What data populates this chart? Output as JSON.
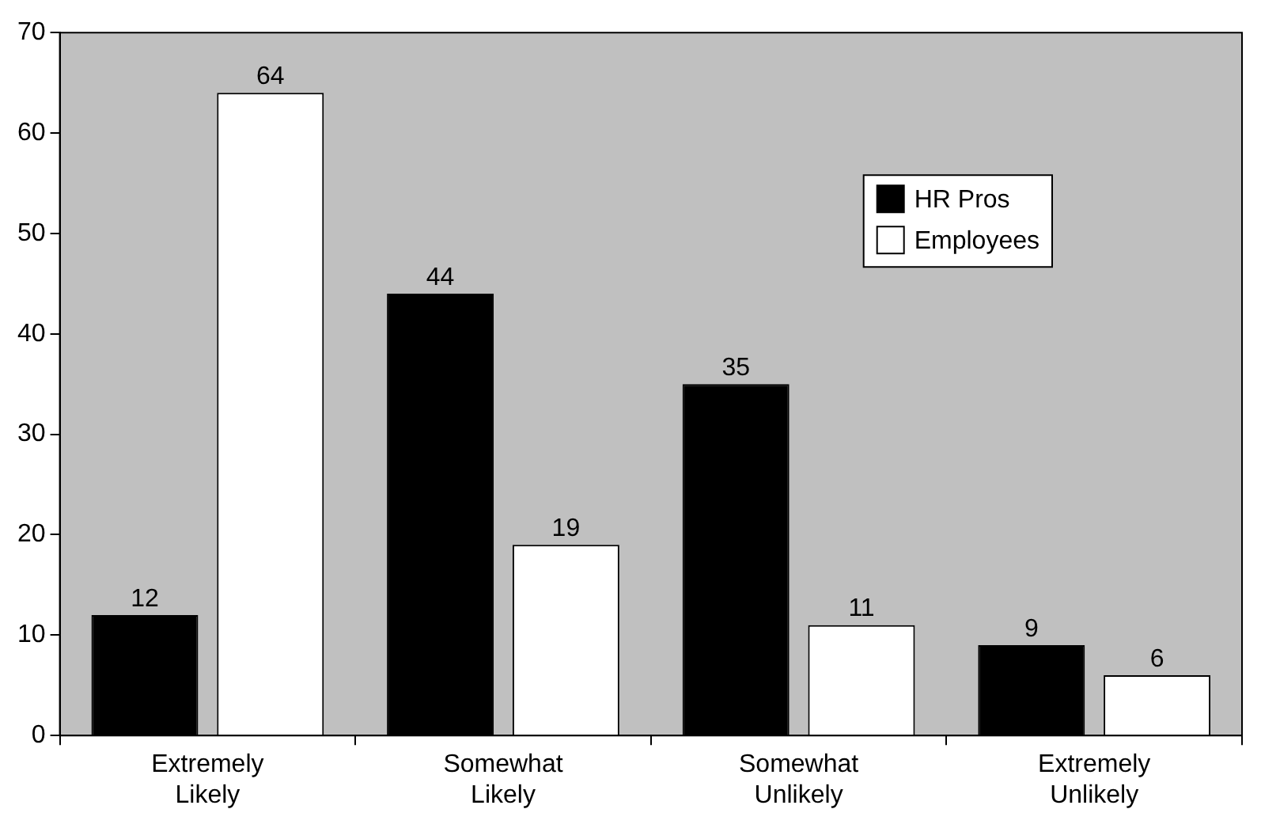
{
  "chart_data": {
    "type": "bar",
    "categories": [
      "Extremely Likely",
      "Somewhat Likely",
      "Somewhat Unlikely",
      "Extremely Unlikely"
    ],
    "series": [
      {
        "name": "HR Pros",
        "color": "#000000",
        "values": [
          12,
          44,
          35,
          9
        ]
      },
      {
        "name": "Employees",
        "color": "#ffffff",
        "values": [
          64,
          19,
          11,
          6
        ]
      }
    ],
    "ylim": [
      0,
      70
    ],
    "yticks": [
      0,
      10,
      20,
      30,
      40,
      50,
      60,
      70
    ],
    "grid": false,
    "legend": "top right",
    "data_labels": true
  }
}
